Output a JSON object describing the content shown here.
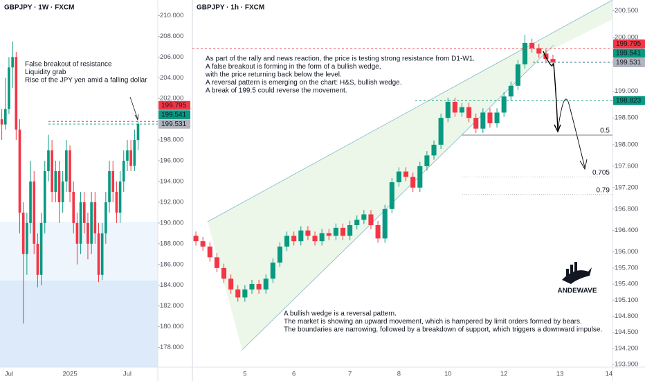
{
  "chart_data": [
    {
      "type": "candlestick",
      "title": "GBPJPY · 1W · FXCM",
      "up_color": "#089981",
      "down_color": "#f23645",
      "ylim": [
        176.1,
        211.5
      ],
      "yticks": [
        {
          "value": 178,
          "label": "178.000"
        },
        {
          "value": 180,
          "label": "180.000"
        },
        {
          "value": 182,
          "label": "182.000"
        },
        {
          "value": 184,
          "label": "184.000"
        },
        {
          "value": 186,
          "label": "186.000"
        },
        {
          "value": 188,
          "label": "188.000"
        },
        {
          "value": 190,
          "label": "190.000"
        },
        {
          "value": 192,
          "label": "192.000"
        },
        {
          "value": 194,
          "label": "194.000"
        },
        {
          "value": 196,
          "label": "196.000"
        },
        {
          "value": 198,
          "label": "198.000"
        },
        {
          "value": 202,
          "label": "202.000"
        },
        {
          "value": 204,
          "label": "204.000"
        },
        {
          "value": 206,
          "label": "206.000"
        },
        {
          "value": 208,
          "label": "208.000"
        },
        {
          "value": 210,
          "label": "210.000"
        }
      ],
      "categories": [
        null,
        null,
        "Jul",
        null,
        null,
        null,
        null,
        null,
        null,
        null,
        null,
        null,
        null,
        null,
        null,
        null,
        null,
        null,
        null,
        "2025",
        null,
        null,
        null,
        null,
        null,
        null,
        null,
        null,
        null,
        null,
        null,
        null,
        null,
        null,
        null,
        "Jul",
        null,
        null,
        null,
        null,
        null,
        null,
        null,
        null
      ],
      "ohlc": [
        [
          200,
          201,
          198,
          199.5
        ],
        [
          199.5,
          204,
          199,
          201
        ],
        [
          201,
          206,
          200.5,
          205
        ],
        [
          205,
          207.5,
          203,
          206
        ],
        [
          206,
          206.5,
          198,
          199
        ],
        [
          199,
          200,
          189,
          191
        ],
        [
          191,
          192,
          180.3,
          187
        ],
        [
          187,
          191,
          185,
          190
        ],
        [
          190,
          196,
          189,
          194
        ],
        [
          194,
          195,
          187,
          188
        ],
        [
          188,
          189,
          183.8,
          185
        ],
        [
          185,
          191,
          184,
          190
        ],
        [
          190,
          196,
          189,
          195
        ],
        [
          195,
          198.5,
          194,
          197
        ],
        [
          197,
          198,
          192,
          193
        ],
        [
          193,
          196,
          192,
          195
        ],
        [
          195,
          196,
          190,
          192
        ],
        [
          192,
          195,
          191,
          194
        ],
        [
          194,
          198,
          193,
          197
        ],
        [
          197,
          197.5,
          192,
          193
        ],
        [
          193,
          194,
          189,
          190
        ],
        [
          190,
          191,
          186,
          188
        ],
        [
          188,
          193,
          187,
          192
        ],
        [
          192,
          193,
          189,
          190
        ],
        [
          190,
          191,
          186.5,
          188
        ],
        [
          188,
          193,
          187,
          192
        ],
        [
          192,
          193,
          188,
          189
        ],
        [
          189,
          190,
          184.3,
          185
        ],
        [
          185,
          190,
          184.5,
          189
        ],
        [
          189,
          193,
          188,
          192
        ],
        [
          192,
          196,
          191,
          195
        ],
        [
          195,
          196,
          192,
          193
        ],
        [
          193,
          194,
          190,
          191
        ],
        [
          191,
          195,
          190,
          194
        ],
        [
          194,
          197,
          193,
          196
        ],
        [
          196,
          198,
          195,
          197
        ],
        [
          197,
          198,
          195,
          195.5
        ],
        [
          195.5,
          199,
          195,
          198
        ],
        [
          198,
          199.8,
          197,
          199.54
        ],
        null,
        null,
        null,
        null,
        null
      ],
      "price_tags": [
        {
          "value": 199.795,
          "color": "#f23645",
          "text_color": "#ffffff"
        },
        {
          "value": 199.541,
          "color": "#089981",
          "text_color": "#ffffff"
        },
        {
          "value": 199.531,
          "color": "#b2b5be",
          "text_color": "#131722"
        }
      ],
      "annotation": [
        "False breakout of resistance",
        "Liquidity grab",
        "Rise of the JPY yen amid a falling dollar"
      ]
    },
    {
      "type": "candlestick",
      "title": "GBPJPY · 1h · FXCM",
      "up_color": "#089981",
      "down_color": "#f23645",
      "ylim": [
        193.85,
        200.7
      ],
      "yticks": [
        {
          "value": 193.9,
          "label": "193.900"
        },
        {
          "value": 194.2,
          "label": "194.200"
        },
        {
          "value": 194.5,
          "label": "194.500"
        },
        {
          "value": 194.8,
          "label": "194.800"
        },
        {
          "value": 195.1,
          "label": "195.100"
        },
        {
          "value": 195.4,
          "label": "195.400"
        },
        {
          "value": 195.7,
          "label": "195.700"
        },
        {
          "value": 196,
          "label": "196.000"
        },
        {
          "value": 196.4,
          "label": "196.400"
        },
        {
          "value": 196.8,
          "label": "196.800"
        },
        {
          "value": 197.2,
          "label": "197.200"
        },
        {
          "value": 197.6,
          "label": "197.600"
        },
        {
          "value": 198,
          "label": "198.000"
        },
        {
          "value": 198.5,
          "label": "198.500"
        },
        {
          "value": 199,
          "label": "199.000"
        },
        {
          "value": 200,
          "label": "200.000"
        },
        {
          "value": 200.5,
          "label": "200.500"
        }
      ],
      "categories": [
        null,
        null,
        null,
        null,
        null,
        null,
        null,
        "5",
        null,
        null,
        null,
        null,
        null,
        null,
        "6",
        null,
        null,
        null,
        null,
        null,
        null,
        null,
        "7",
        null,
        null,
        null,
        null,
        null,
        null,
        "8",
        null,
        null,
        null,
        null,
        null,
        null,
        "10",
        null,
        null,
        null,
        null,
        null,
        null,
        null,
        "12",
        null,
        null,
        null,
        null,
        null,
        null,
        null,
        "13",
        null,
        null,
        null,
        null,
        null,
        null,
        "14"
      ],
      "ohlc": [
        [
          196.3,
          196.38,
          196.12,
          196.2
        ],
        [
          196.2,
          196.28,
          196.02,
          196.1
        ],
        [
          196.1,
          196.18,
          195.82,
          195.9
        ],
        [
          195.9,
          195.98,
          195.62,
          195.7
        ],
        [
          195.7,
          195.78,
          195.42,
          195.5
        ],
        [
          195.5,
          195.58,
          195.22,
          195.3
        ],
        [
          195.3,
          195.38,
          195.07,
          195.15
        ],
        [
          195.15,
          195.38,
          195.07,
          195.3
        ],
        [
          195.3,
          195.48,
          195.22,
          195.4
        ],
        [
          195.4,
          195.48,
          195.22,
          195.3
        ],
        [
          195.3,
          195.58,
          195.22,
          195.5
        ],
        [
          195.5,
          195.88,
          195.42,
          195.8
        ],
        [
          195.8,
          196.18,
          195.72,
          196.1
        ],
        [
          196.1,
          196.38,
          196.02,
          196.3
        ],
        [
          196.3,
          196.38,
          196.12,
          196.2
        ],
        [
          196.2,
          196.48,
          196.12,
          196.4
        ],
        [
          196.4,
          196.48,
          196.22,
          196.3
        ],
        [
          196.3,
          196.38,
          196.12,
          196.2
        ],
        [
          196.2,
          196.43,
          196.12,
          196.35
        ],
        [
          196.35,
          196.43,
          196.22,
          196.3
        ],
        [
          196.3,
          196.53,
          196.22,
          196.45
        ],
        [
          196.45,
          196.53,
          196.22,
          196.3
        ],
        [
          196.3,
          196.58,
          196.22,
          196.5
        ],
        [
          196.5,
          196.68,
          196.42,
          196.6
        ],
        [
          196.6,
          196.78,
          196.52,
          196.7
        ],
        [
          196.7,
          196.78,
          196.42,
          196.5
        ],
        [
          196.5,
          196.58,
          196.17,
          196.25
        ],
        [
          196.25,
          196.88,
          196.17,
          196.8
        ],
        [
          196.8,
          197.38,
          196.72,
          197.3
        ],
        [
          197.3,
          197.58,
          197.22,
          197.5
        ],
        [
          197.5,
          197.58,
          197.32,
          197.4
        ],
        [
          197.4,
          197.48,
          197.12,
          197.2
        ],
        [
          197.2,
          197.68,
          197.12,
          197.6
        ],
        [
          197.6,
          197.88,
          197.52,
          197.8
        ],
        [
          197.8,
          198.08,
          197.72,
          198.0
        ],
        [
          198.0,
          198.58,
          197.92,
          198.5
        ],
        [
          198.5,
          198.88,
          198.42,
          198.8
        ],
        [
          198.8,
          198.88,
          198.52,
          198.6
        ],
        [
          198.6,
          198.78,
          198.52,
          198.7
        ],
        [
          198.7,
          198.78,
          198.42,
          198.5
        ],
        [
          198.5,
          198.58,
          198.22,
          198.3
        ],
        [
          198.3,
          198.68,
          198.22,
          198.6
        ],
        [
          198.6,
          198.68,
          198.32,
          198.4
        ],
        [
          198.4,
          198.68,
          198.32,
          198.6
        ],
        [
          198.6,
          198.98,
          198.52,
          198.9
        ],
        [
          198.9,
          199.18,
          198.82,
          199.1
        ],
        [
          199.1,
          199.58,
          199.02,
          199.5
        ],
        [
          199.5,
          200.05,
          199.42,
          199.9
        ],
        [
          199.9,
          199.98,
          199.72,
          199.8
        ],
        [
          199.8,
          199.88,
          199.62,
          199.7
        ],
        [
          199.7,
          199.78,
          199.52,
          199.6
        ],
        [
          199.6,
          199.68,
          199.46,
          199.54
        ],
        null,
        null,
        null,
        null,
        null,
        null,
        null,
        null
      ],
      "price_tags": [
        {
          "value": 199.795,
          "color": "#f23645",
          "text_color": "#ffffff"
        },
        {
          "value": 199.541,
          "color": "#089981",
          "text_color": "#ffffff"
        },
        {
          "value": 199.531,
          "color": "#b2b5be",
          "text_color": "#131722"
        },
        {
          "value": 198.823,
          "color": "#089981",
          "text_color": "#ffffff"
        }
      ],
      "fib_levels": [
        {
          "level": 0.5,
          "price": 198.18
        },
        {
          "level": 0.705,
          "price": 197.4
        },
        {
          "level": 0.79,
          "price": 197.07
        }
      ],
      "annotation": [
        "As part of the rally and news reaction, the price is testing strong resistance from D1-W1.",
        "A false breakout is forming in the form of a bullish wedge,",
        "with the price returning back below the level.",
        "A reversal pattern is emerging on the chart: H&S, bullish wedge.",
        "A break of 199.5 could reverse the movement."
      ],
      "annotation_bottom": [
        "A bullish wedge is a reversal pattern.",
        "The market is showing an upward movement, which is hampered by limit orders formed by bears.",
        "The boundaries are narrowing, followed by a breakdown of support, which triggers a downward impulse."
      ],
      "logo": "ANDEWAVE"
    }
  ]
}
